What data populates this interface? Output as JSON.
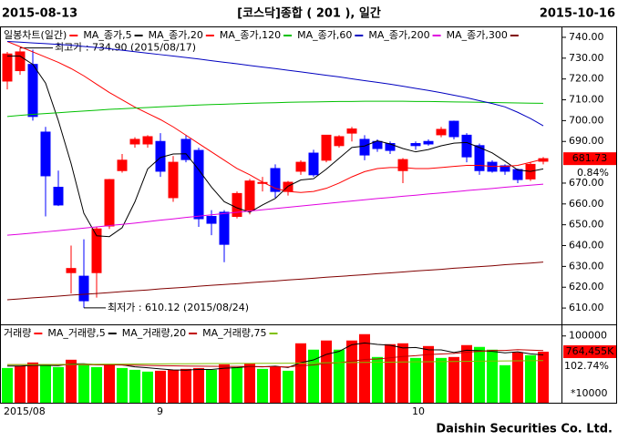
{
  "header": {
    "start_date": "2015-08-13",
    "title": "[코스닥]종합 ( 201 ), 일간",
    "end_date": "2015-10-16"
  },
  "footer": "Daishin Securities Co. Ltd.",
  "chart_data": [
    {
      "type": "candlestick",
      "ylim": [
        602.6,
        744.8
      ],
      "yticks": [
        {
          "value": 740,
          "label": "740.00"
        },
        {
          "value": 730,
          "label": "730.00"
        },
        {
          "value": 720,
          "label": "720.00"
        },
        {
          "value": 710,
          "label": "710.00"
        },
        {
          "value": 700,
          "label": "700.00"
        },
        {
          "value": 690,
          "label": "690.00"
        },
        {
          "value": 670,
          "label": "670.00"
        },
        {
          "value": 660,
          "label": "660.00"
        },
        {
          "value": 650,
          "label": "650.00"
        },
        {
          "value": 640,
          "label": "640.00"
        },
        {
          "value": 630,
          "label": "630.00"
        },
        {
          "value": 620,
          "label": "620.00"
        },
        {
          "value": 610,
          "label": "610.00"
        }
      ],
      "series": [
        {
          "name": "일봉차트(일간)",
          "up_color": "#ff0000",
          "down_color": "#0000ff",
          "open": [
            719,
            724,
            727,
            694.5,
            668,
            627,
            625.3,
            627,
            649.4,
            676,
            688.8,
            688.8,
            690,
            663,
            691,
            685.7,
            654,
            656,
            654,
            657,
            670,
            677,
            666,
            675.7,
            684.4,
            681,
            688,
            694,
            691,
            690,
            689,
            676,
            689,
            690,
            693.2,
            699.7,
            693,
            688,
            680,
            678.3,
            676.5,
            672,
            680.5
          ],
          "high": [
            733,
            734.9,
            734,
            697,
            676,
            640,
            643,
            649,
            672,
            684,
            692,
            693,
            694,
            683,
            693,
            687,
            657,
            657,
            666,
            672,
            673,
            679,
            671,
            681,
            686,
            693,
            693,
            697,
            693,
            691,
            690,
            682,
            690,
            691,
            697,
            700,
            694,
            689,
            681,
            679,
            677,
            680,
            682.5
          ],
          "low": [
            715,
            722,
            700,
            654,
            659,
            617,
            610.12,
            615,
            648,
            675,
            687,
            687,
            673,
            661,
            680,
            649,
            645,
            632,
            653,
            655,
            666,
            663,
            664,
            674,
            673,
            680,
            687,
            690,
            681,
            685,
            684,
            670,
            686,
            688,
            692,
            691,
            680,
            674,
            675,
            674,
            670,
            671,
            679
          ],
          "close": [
            732,
            733,
            702,
            673.5,
            659.5,
            629,
            613.5,
            648,
            671.7,
            681,
            691,
            692.3,
            675.7,
            680,
            681.3,
            652.9,
            650.7,
            640.6,
            665,
            671,
            670.3,
            666,
            670.4,
            680,
            674,
            693,
            692.3,
            696,
            683.5,
            686.6,
            685.7,
            681.3,
            688,
            688.8,
            695.8,
            692.3,
            682.6,
            676,
            675.7,
            675.7,
            671.7,
            679,
            681.73
          ]
        },
        {
          "name": "MA_종가,5",
          "color": "#000000",
          "values": [
            731,
            731,
            727,
            718,
            700,
            679.4,
            655.5,
            644.7,
            644.3,
            648.6,
            661.0,
            676.8,
            682.3,
            684.0,
            684.1,
            676.4,
            668.1,
            661.1,
            658.1,
            656.0,
            659.5,
            662.6,
            668.5,
            671.5,
            672.1,
            676.7,
            681.9,
            687.1,
            687.8,
            690.3,
            688.8,
            686.6,
            685.0,
            686.1,
            687.9,
            689.2,
            689.5,
            687.1,
            684.5,
            680.5,
            676.3,
            675.6,
            676.8
          ]
        },
        {
          "name": "MA_종가,20",
          "color": "#ff0000",
          "values": [
            738.0,
            735.5,
            733.0,
            730.5,
            728.0,
            725.0,
            721.5,
            717.5,
            713.5,
            710.0,
            706.5,
            703.5,
            700.5,
            697.0,
            693.0,
            689.0,
            685.0,
            681.0,
            677.0,
            674.0,
            670.5,
            667.5,
            666.0,
            665.5,
            666.0,
            667.5,
            670.0,
            673.0,
            675.5,
            677.0,
            677.5,
            677.5,
            677.0,
            677.0,
            677.5,
            678.0,
            678.5,
            678.5,
            678.0,
            678.0,
            678.5,
            680.0,
            681.5
          ]
        },
        {
          "name": "MA_종가,120",
          "color": "#00c000",
          "values": [
            702.0,
            702.5,
            703.0,
            703.4,
            703.8,
            704.2,
            704.6,
            705.0,
            705.4,
            705.7,
            706.0,
            706.3,
            706.6,
            706.9,
            707.2,
            707.5,
            707.7,
            707.9,
            708.1,
            708.3,
            708.5,
            708.6,
            708.8,
            708.9,
            709.0,
            709.1,
            709.2,
            709.2,
            709.3,
            709.3,
            709.3,
            709.3,
            709.2,
            709.2,
            709.1,
            709.0,
            708.9,
            708.8,
            708.7,
            708.6,
            708.5,
            708.4,
            708.3
          ]
        },
        {
          "name": "MA_종가,60",
          "color": "#0000c0",
          "values": [
            738.0,
            737.7,
            737.3,
            737.0,
            736.6,
            736.2,
            735.6,
            735.1,
            734.5,
            733.8,
            733.1,
            732.4,
            731.7,
            731.0,
            730.3,
            729.6,
            728.8,
            728.0,
            727.3,
            726.5,
            725.7,
            725.0,
            724.2,
            723.4,
            722.6,
            721.8,
            721.0,
            720.1,
            719.2,
            718.4,
            717.5,
            716.5,
            715.5,
            714.5,
            713.4,
            712.2,
            711.0,
            709.6,
            708.2,
            706.6,
            704.0,
            701.0,
            697.5
          ]
        },
        {
          "name": "MA_종가,200",
          "color": "#e000e0",
          "values": [
            645.0,
            645.5,
            646.0,
            646.6,
            647.2,
            647.8,
            648.4,
            649.0,
            649.6,
            650.2,
            650.8,
            651.5,
            652.2,
            652.8,
            653.5,
            654.1,
            654.8,
            655.4,
            656.0,
            656.6,
            657.2,
            657.8,
            658.4,
            659.0,
            659.6,
            660.2,
            660.8,
            661.4,
            662.0,
            662.6,
            663.1,
            663.7,
            664.2,
            664.8,
            665.3,
            665.8,
            666.4,
            666.9,
            667.4,
            668.0,
            668.5,
            669.0,
            669.5
          ]
        },
        {
          "name": "MA_종가,300",
          "color": "#800000",
          "values": [
            614.0,
            614.4,
            614.9,
            615.3,
            615.7,
            616.2,
            616.6,
            617.0,
            617.4,
            617.9,
            618.3,
            618.7,
            619.2,
            619.6,
            620.0,
            620.5,
            620.9,
            621.3,
            621.7,
            622.2,
            622.6,
            623.0,
            623.5,
            623.9,
            624.3,
            624.8,
            625.2,
            625.6,
            626.0,
            626.5,
            626.9,
            627.3,
            627.8,
            628.2,
            628.6,
            629.1,
            629.5,
            629.9,
            630.3,
            630.8,
            631.2,
            631.6,
            632.1
          ]
        }
      ],
      "annotations": [
        {
          "text": "최고가 : 734.90 (2015/08/17)",
          "color": "#ff0000"
        },
        {
          "text": "최저가 : 610.12 (2015/08/24)",
          "color": "#0000ff"
        }
      ],
      "change_label": "0.84%"
    },
    {
      "type": "bar",
      "categories": [
        "2015/08",
        null,
        null,
        null,
        null,
        null,
        null,
        null,
        null,
        null,
        null,
        null,
        "9",
        null,
        null,
        null,
        null,
        null,
        null,
        null,
        null,
        null,
        null,
        null,
        null,
        null,
        null,
        null,
        null,
        null,
        null,
        null,
        "10",
        null,
        null,
        null,
        null,
        null,
        null,
        null,
        null,
        null,
        null
      ],
      "ylim": [
        0,
        116000
      ],
      "yticks": [
        100000
      ],
      "unit_label": "*10000",
      "series": [
        {
          "name": "거래량",
          "up_color": "#ff0000",
          "down_color": "#00ff00",
          "values": [
            52000,
            54800,
            60300,
            57500,
            53400,
            64400,
            56200,
            53400,
            57500,
            52000,
            49300,
            46600,
            47900,
            49300,
            50700,
            52000,
            49300,
            57500,
            53400,
            58900,
            50700,
            53400,
            47900,
            89000,
            79500,
            93200,
            79500,
            93200,
            102700,
            68500,
            87700,
            89000,
            67100,
            84900,
            67100,
            68500,
            86300,
            83600,
            79500,
            56200,
            75300,
            71200,
            76445.5
          ],
          "value_labels": [
            null,
            null,
            null,
            null,
            null,
            null,
            null,
            null,
            null,
            null,
            null,
            null,
            null,
            null,
            null,
            null,
            null,
            null,
            null,
            null,
            null,
            null,
            null,
            null,
            null,
            null,
            null,
            null,
            null,
            null,
            null,
            null,
            null,
            null,
            null,
            null,
            null,
            null,
            null,
            null,
            null,
            null,
            "764,455K"
          ]
        },
        {
          "name": "MA_거래량,5",
          "color": "#000000",
          "values": [
            55000,
            55000,
            56000,
            56000,
            55600,
            58100,
            58400,
            57000,
            57000,
            56700,
            53700,
            52300,
            50700,
            49100,
            48800,
            49900,
            49800,
            51700,
            52500,
            54200,
            53800,
            54800,
            52800,
            60000,
            64100,
            72400,
            76900,
            86900,
            89600,
            87400,
            86100,
            82100,
            82800,
            79400,
            79100,
            75300,
            78700,
            78000,
            77000,
            74700,
            76200,
            73200,
            71700
          ]
        },
        {
          "name": "MA_거래량,20",
          "color": "#c00000",
          "values": [
            57000,
            57000,
            57000,
            57000,
            56800,
            57000,
            57000,
            56800,
            56700,
            56500,
            56200,
            55800,
            55500,
            55200,
            55000,
            54800,
            54600,
            54500,
            54400,
            54300,
            54000,
            53900,
            53600,
            55400,
            56700,
            58700,
            60000,
            62300,
            64800,
            65500,
            67300,
            69300,
            70400,
            72200,
            73000,
            73900,
            75700,
            77000,
            78300,
            78300,
            79500,
            78800,
            78200
          ]
        },
        {
          "name": "MA_거래량,75",
          "color": "#80c000",
          "values": [
            57000,
            57100,
            57200,
            57300,
            57400,
            57500,
            57600,
            57700,
            57800,
            57900,
            58000,
            58100,
            58200,
            58300,
            58400,
            58500,
            58600,
            58700,
            58800,
            58900,
            59000,
            59100,
            59200,
            59400,
            59600,
            59800,
            60000,
            60200,
            60400,
            60600,
            60800,
            61000,
            61200,
            61400,
            61600,
            61800,
            62000,
            62200,
            62400,
            62600,
            62800,
            63000,
            63200
          ]
        }
      ],
      "change_label": "102.74%"
    }
  ]
}
